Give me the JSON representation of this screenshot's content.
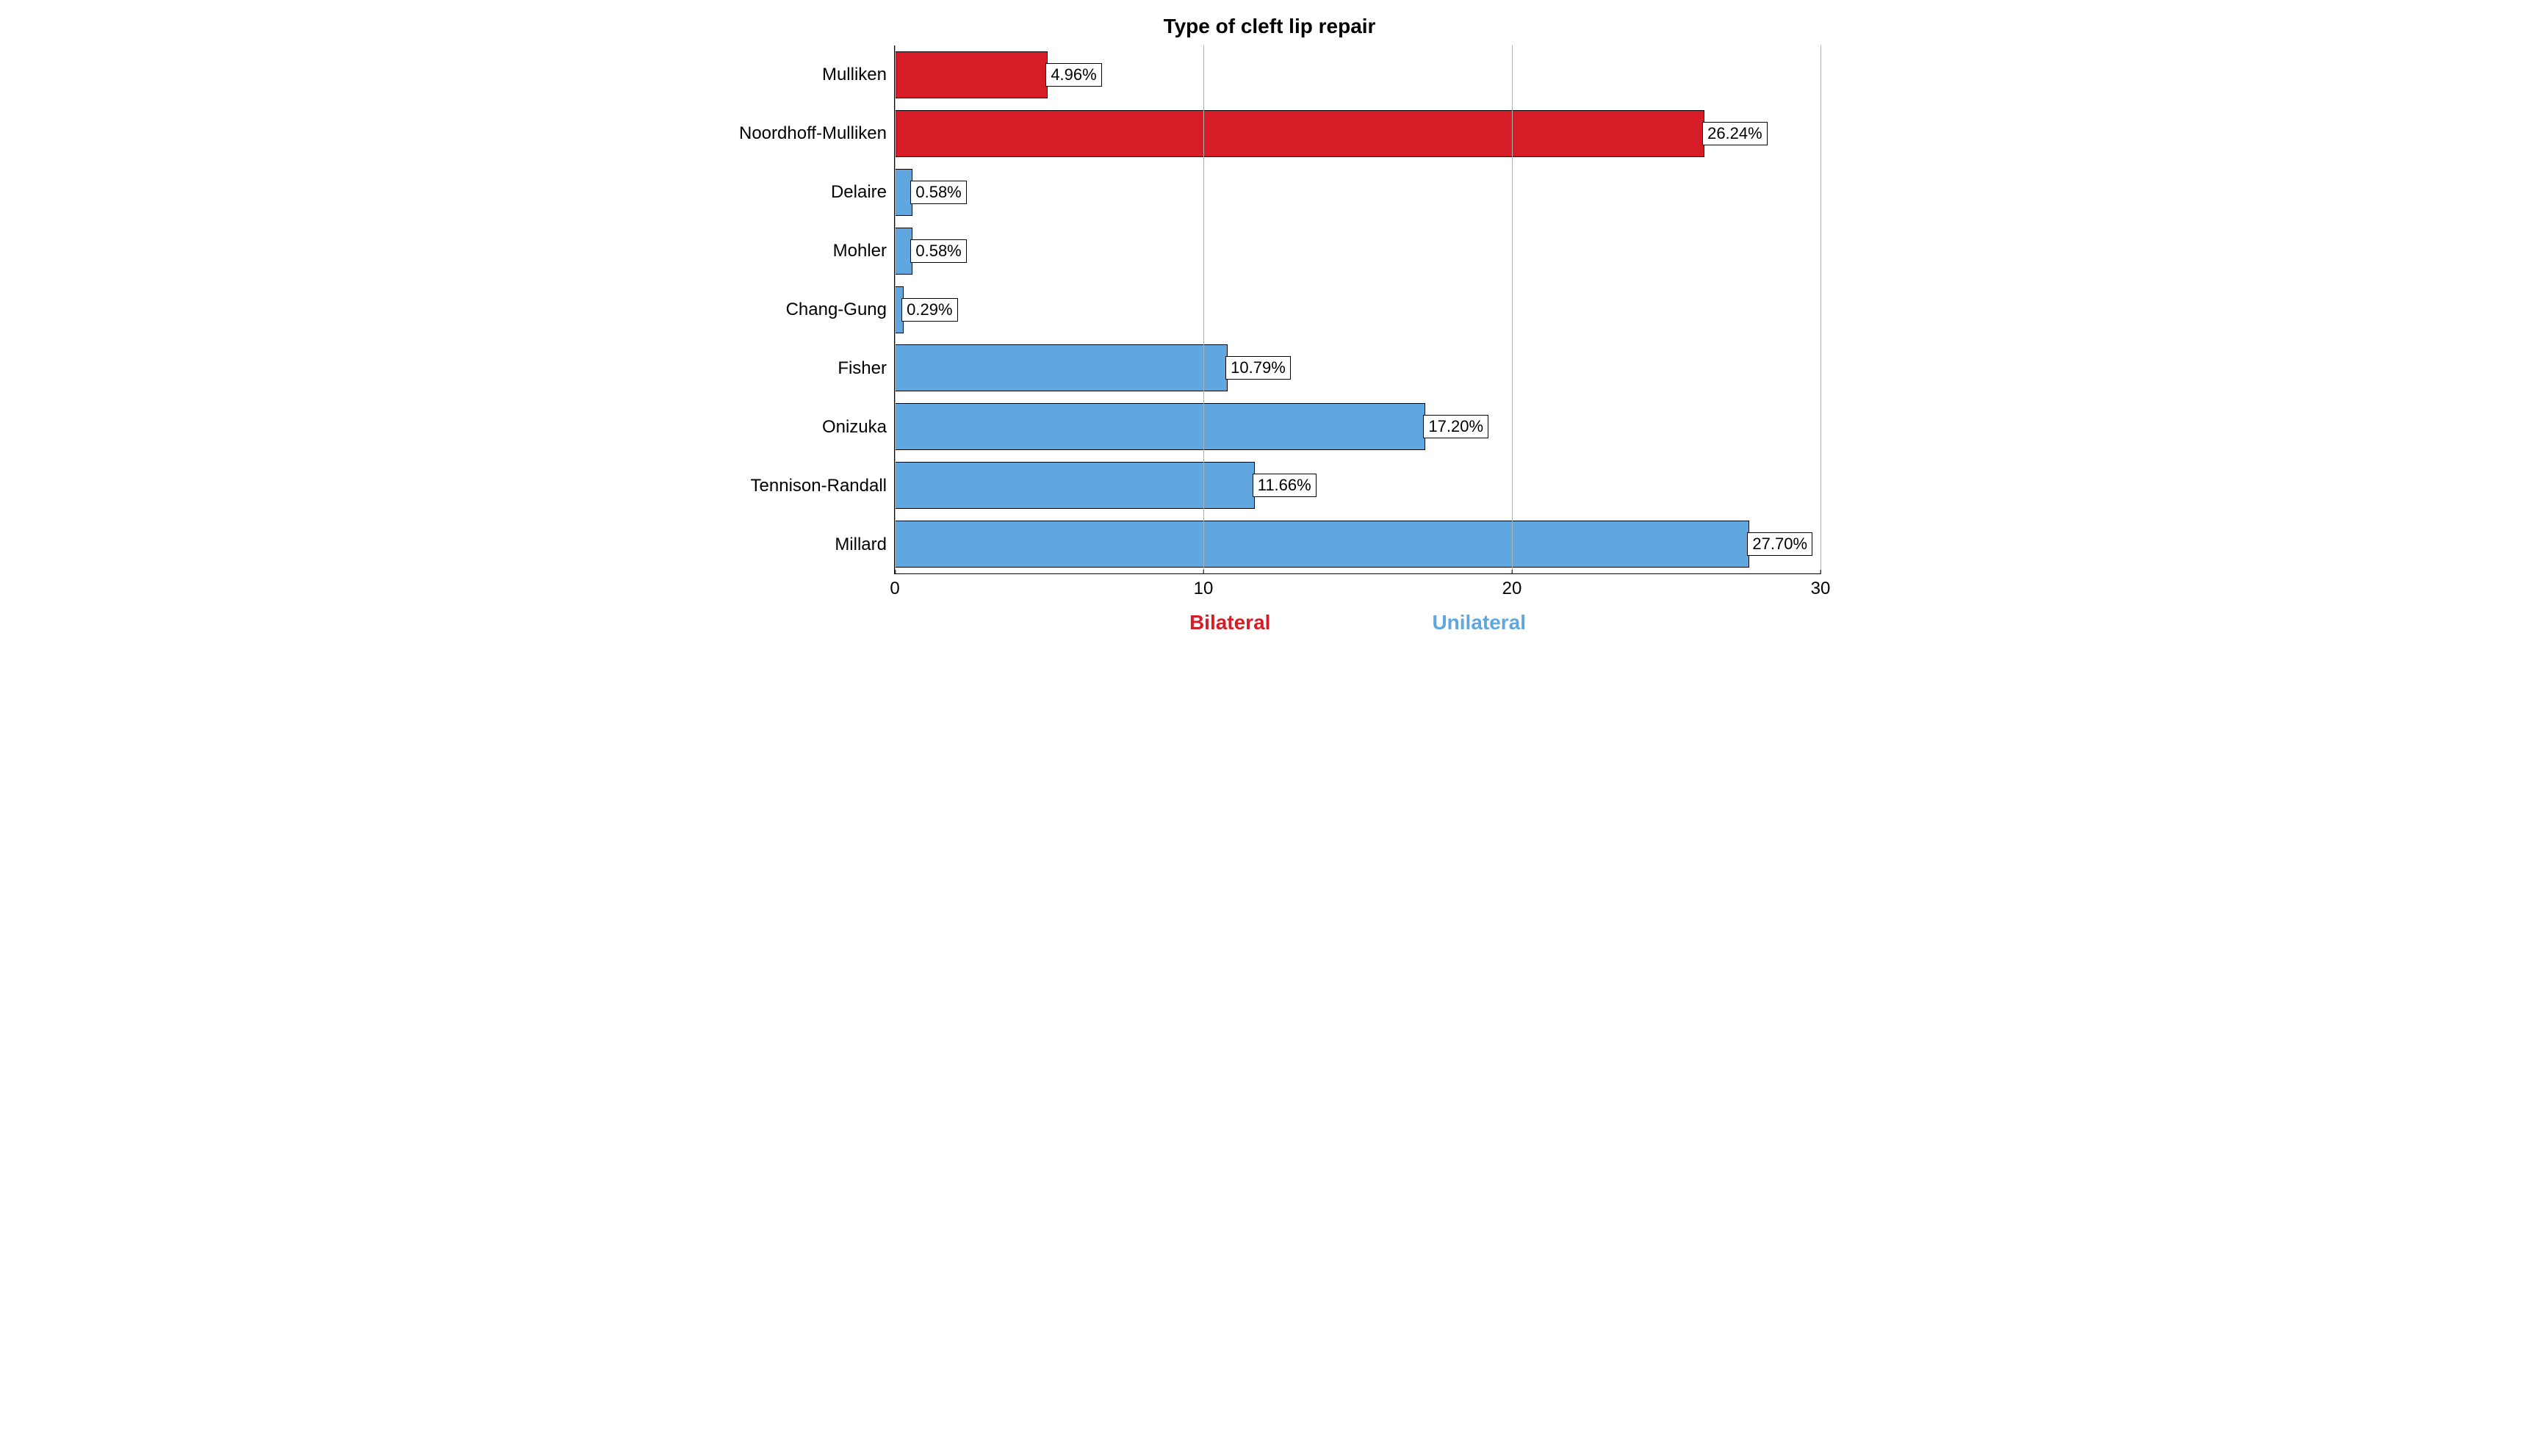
{
  "chart": {
    "type": "horizontal-bar",
    "title": "Type of cleft lip repair",
    "title_fontsize": 28,
    "title_fontweight": "bold",
    "background_color": "#ffffff",
    "grid_color": "#b0b0b0",
    "axis_color": "#000000",
    "label_fontsize": 24,
    "data_label_fontsize": 22,
    "legend_fontsize": 28,
    "bar_border_color": "#000000",
    "bar_border_width": 1,
    "bar_height_ratio": 0.8,
    "xlim": [
      0,
      30
    ],
    "xticks": [
      0,
      10,
      20,
      30
    ],
    "categories": [
      "Mulliken",
      "Noordhoff-Mulliken",
      "Delaire",
      "Mohler",
      "Chang-Gung",
      "Fisher",
      "Onizuka",
      "Tennison-Randall",
      "Millard"
    ],
    "values": [
      4.96,
      26.24,
      0.58,
      0.58,
      0.29,
      10.79,
      17.2,
      11.66,
      27.7
    ],
    "data_labels": [
      "4.96%",
      "26.24%",
      "0.58%",
      "0.58%",
      "0.29%",
      "10.79%",
      "17.20%",
      "11.66%",
      "27.70%"
    ],
    "bar_colors": [
      "#d61d27",
      "#d61d27",
      "#60a6df",
      "#60a6df",
      "#60a6df",
      "#60a6df",
      "#60a6df",
      "#60a6df",
      "#60a6df"
    ],
    "bar_groups": [
      "Bilateral",
      "Bilateral",
      "Unilateral",
      "Unilateral",
      "Unilateral",
      "Unilateral",
      "Unilateral",
      "Unilateral",
      "Unilateral"
    ],
    "legend": {
      "items": [
        {
          "label": "Bilateral",
          "color": "#d61d27"
        },
        {
          "label": "Unilateral",
          "color": "#60a6df"
        }
      ],
      "position": "bottom"
    }
  }
}
